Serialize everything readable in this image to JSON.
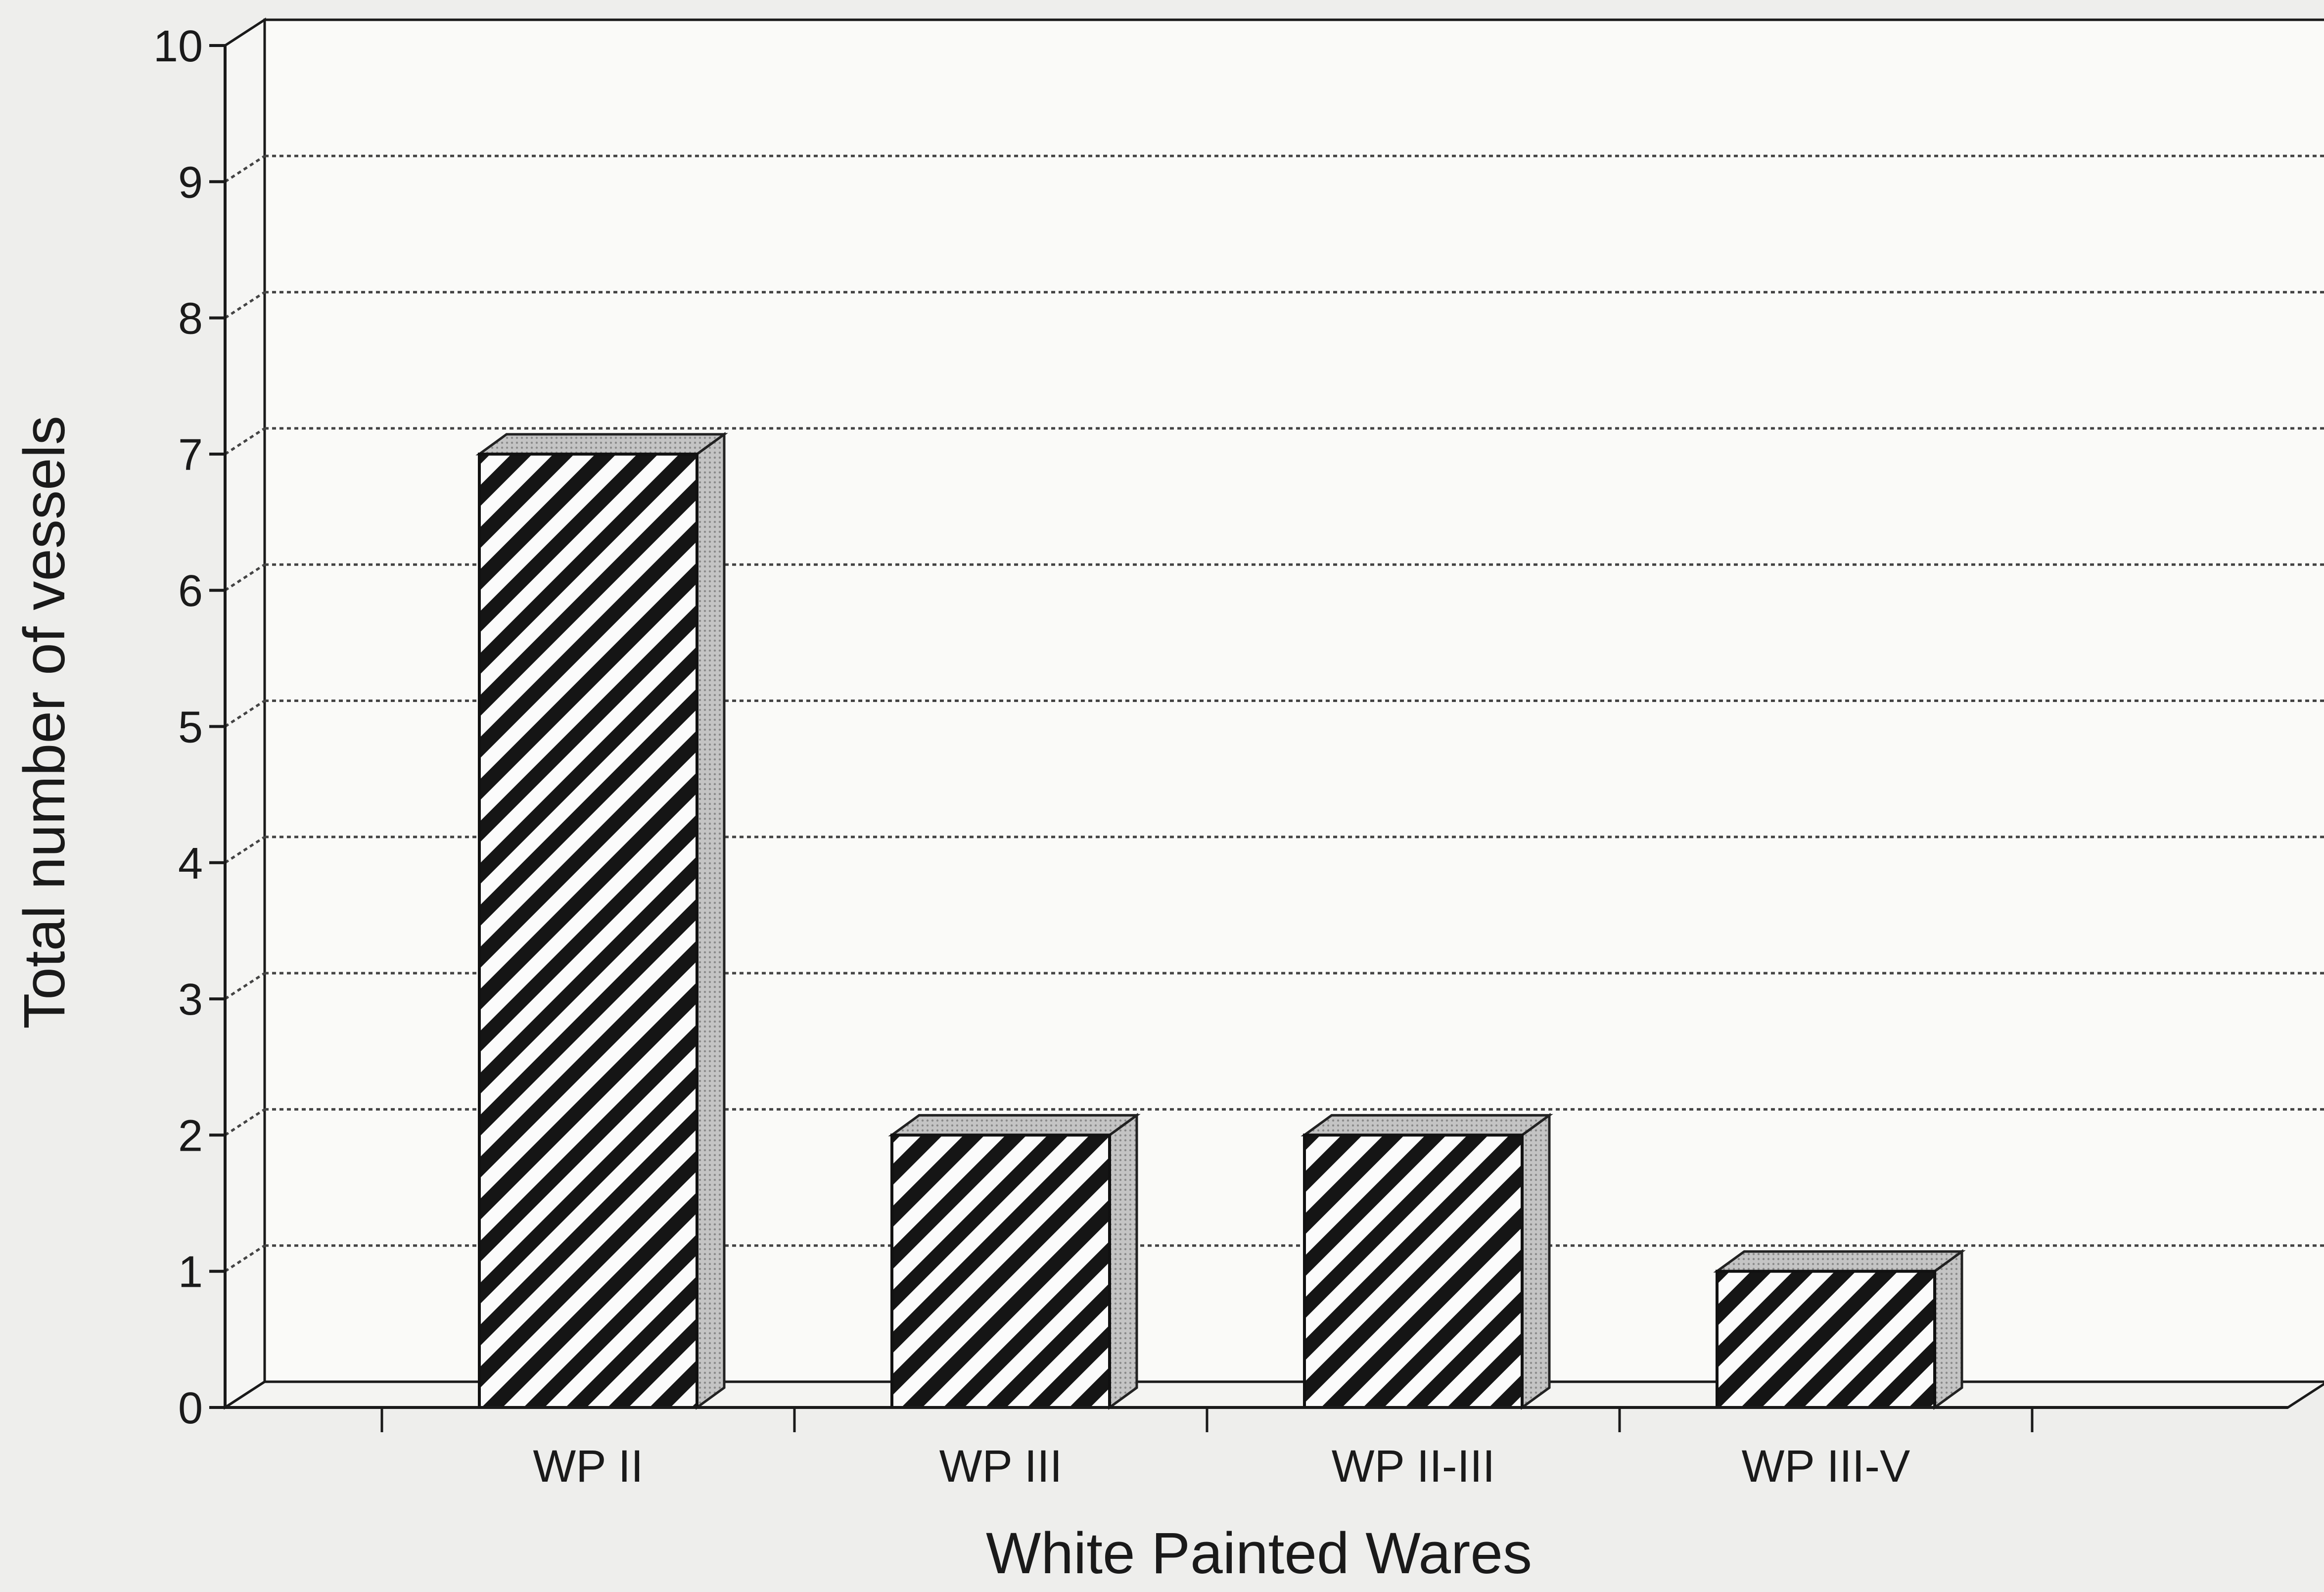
{
  "chart_data": {
    "type": "bar",
    "categories": [
      "WP II",
      "WP III",
      "WP II-III",
      "WP III-V"
    ],
    "values": [
      7,
      2,
      2,
      1
    ],
    "xlabel": "White Painted Wares",
    "ylabel": "Total number of vessels",
    "ylim": [
      0,
      10
    ],
    "yticks": [
      "0",
      "1",
      "2",
      "3",
      "4",
      "5",
      "6",
      "7",
      "8",
      "9",
      "10"
    ],
    "grid": true,
    "style": "3d",
    "colors": {
      "bar_stripe": "#151515",
      "bar_face": "#fbfbfb",
      "bar_side": "#b8b8b8",
      "grid": "#444444",
      "axis": "#1a1a1a"
    }
  }
}
